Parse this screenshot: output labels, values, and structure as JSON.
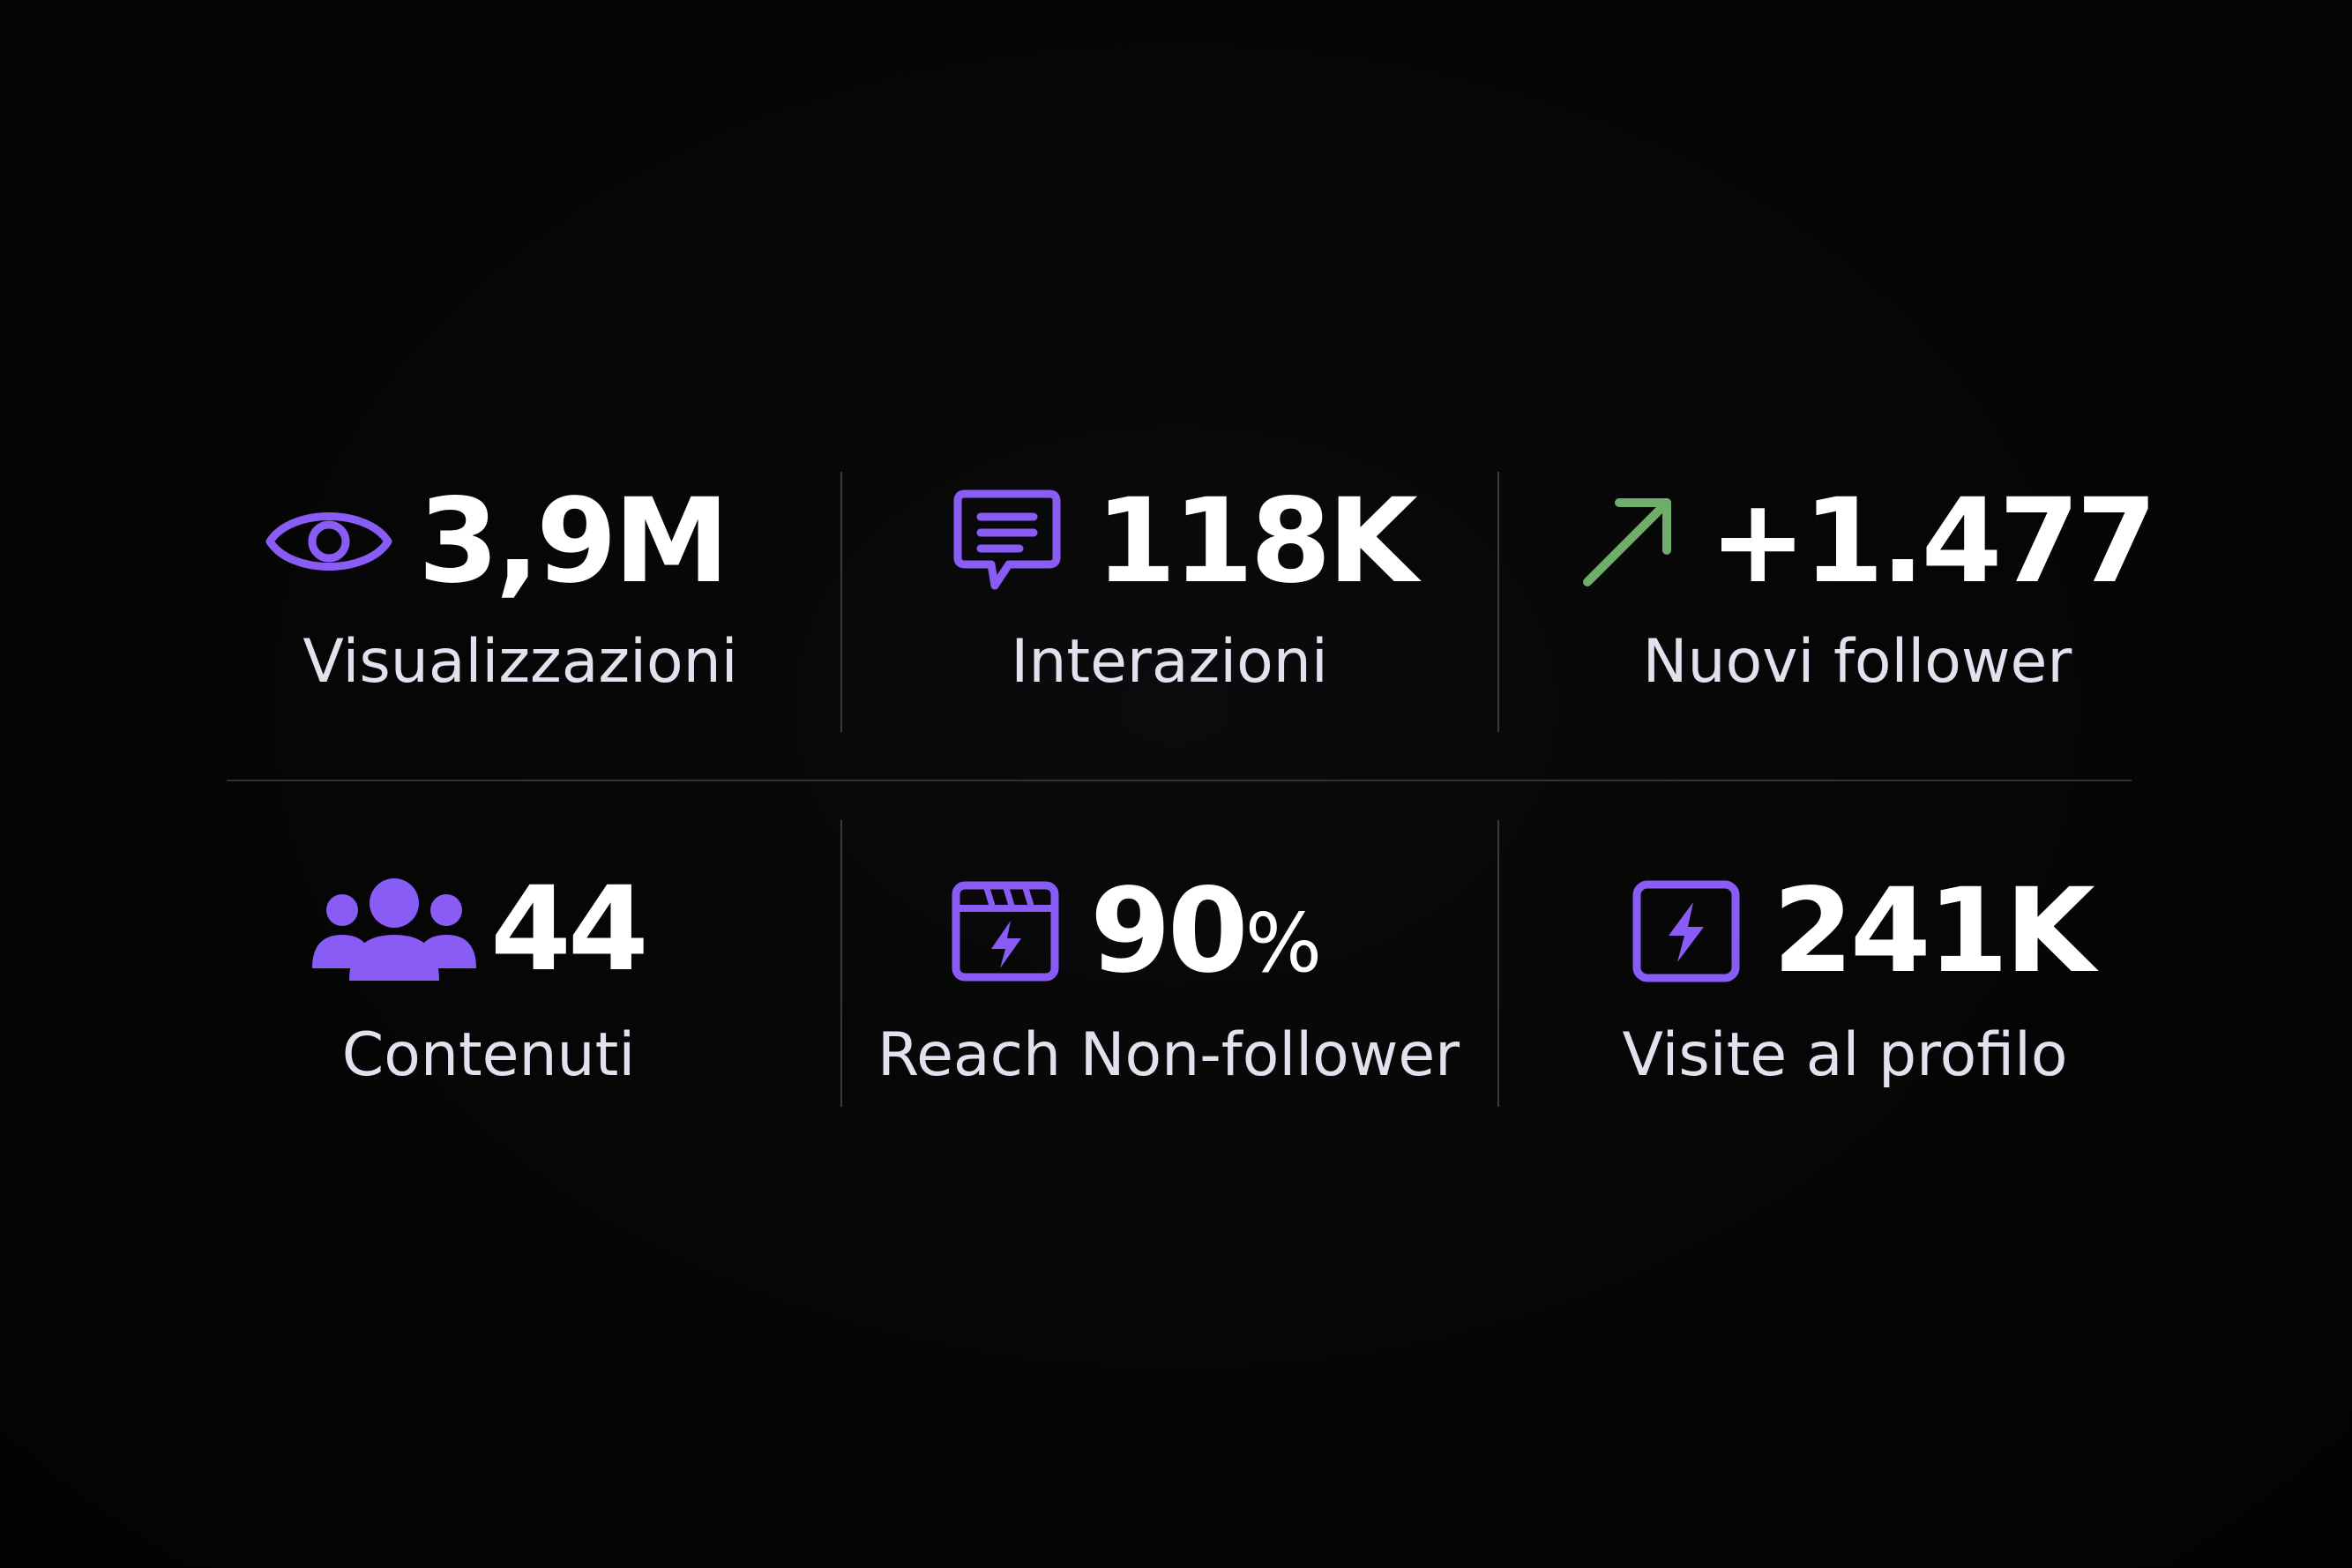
{
  "colors": {
    "background": "#050505",
    "accent_purple": "#8a5cf6",
    "accent_green": "#6fae6a",
    "value_text": "#ffffff",
    "label_text": "#e4e0ee"
  },
  "stats": [
    {
      "icon": "eye-icon",
      "value": "3,9M",
      "label": "Visualizzazioni"
    },
    {
      "icon": "chat-bubble-icon",
      "value": "118K",
      "label": "Interazioni"
    },
    {
      "icon": "arrow-up-right-icon",
      "value": "+1.477",
      "label": "Nuovi follower"
    },
    {
      "icon": "users-group-icon",
      "value": "44",
      "label": "Contenuti"
    },
    {
      "icon": "clapperboard-bolt-icon",
      "value": "90",
      "unit": "%",
      "label": "Reach Non-follower"
    },
    {
      "icon": "bolt-square-icon",
      "value": "241K",
      "label": "Visite al profilo"
    }
  ]
}
